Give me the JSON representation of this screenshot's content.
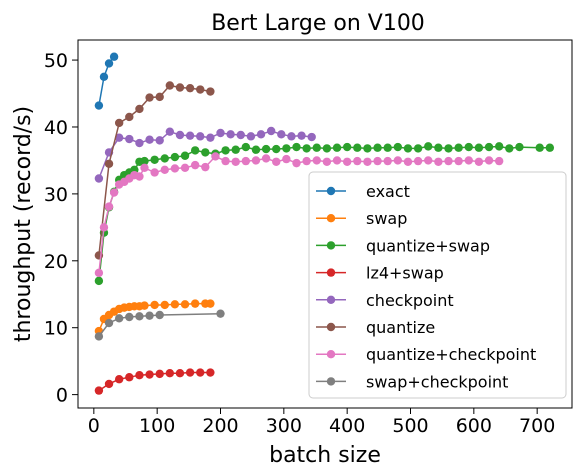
{
  "chart_data": {
    "type": "line",
    "title": "Bert Large on V100",
    "xlabel": "batch size",
    "ylabel": "throughput (record/s)",
    "xlim": [
      -25,
      755
    ],
    "ylim": [
      -2,
      53
    ],
    "xticks": [
      0,
      100,
      200,
      300,
      400,
      500,
      600,
      700
    ],
    "yticks": [
      0,
      10,
      20,
      30,
      40,
      50
    ],
    "grid": false,
    "legend_position": "bottom-right",
    "series": [
      {
        "name": "exact",
        "color": "#1f77b4",
        "x": [
          8,
          16,
          24,
          32
        ],
        "y": [
          43.2,
          47.5,
          49.5,
          50.5
        ]
      },
      {
        "name": "swap",
        "color": "#ff7f0e",
        "x": [
          8,
          16,
          24,
          32,
          40,
          48,
          56,
          64,
          72,
          80,
          96,
          112,
          128,
          144,
          160,
          176,
          184
        ],
        "y": [
          9.5,
          11.3,
          11.9,
          12.4,
          12.8,
          13.0,
          13.1,
          13.2,
          13.2,
          13.3,
          13.4,
          13.4,
          13.5,
          13.5,
          13.6,
          13.6,
          13.6
        ]
      },
      {
        "name": "quantize+swap",
        "color": "#2ca02c",
        "x": [
          8,
          16,
          24,
          32,
          40,
          48,
          56,
          64,
          72,
          80,
          96,
          112,
          128,
          144,
          160,
          176,
          192,
          208,
          224,
          240,
          256,
          272,
          288,
          304,
          320,
          336,
          352,
          368,
          384,
          400,
          416,
          432,
          448,
          464,
          480,
          496,
          512,
          528,
          544,
          560,
          576,
          592,
          608,
          624,
          640,
          656,
          672,
          704,
          720
        ],
        "y": [
          17.0,
          24.2,
          28.0,
          30.3,
          32.1,
          32.8,
          33.2,
          33.6,
          34.8,
          34.9,
          35.1,
          35.3,
          35.5,
          35.7,
          36.5,
          36.2,
          36.0,
          36.5,
          36.6,
          37.0,
          36.6,
          36.7,
          36.7,
          36.8,
          37.0,
          36.8,
          36.9,
          36.8,
          36.9,
          37.0,
          36.9,
          36.8,
          36.9,
          36.9,
          37.0,
          36.8,
          36.8,
          37.1,
          36.9,
          36.8,
          36.9,
          37.0,
          36.9,
          37.0,
          37.1,
          36.8,
          37.0,
          36.9,
          36.9
        ]
      },
      {
        "name": "lz4+swap",
        "color": "#d62728",
        "x": [
          8,
          24,
          40,
          56,
          72,
          88,
          104,
          120,
          136,
          152,
          168,
          184
        ],
        "y": [
          0.6,
          1.6,
          2.3,
          2.6,
          2.9,
          3.0,
          3.1,
          3.2,
          3.2,
          3.3,
          3.3,
          3.3
        ]
      },
      {
        "name": "checkpoint",
        "color": "#9467bd",
        "x": [
          8,
          24,
          40,
          56,
          72,
          88,
          104,
          120,
          136,
          152,
          168,
          184,
          200,
          216,
          232,
          248,
          264,
          280,
          296,
          312,
          328,
          344
        ],
        "y": [
          32.3,
          36.2,
          38.4,
          38.2,
          37.6,
          38.1,
          38.0,
          39.3,
          38.8,
          38.7,
          38.6,
          38.4,
          39.1,
          38.9,
          38.8,
          38.6,
          38.9,
          39.4,
          38.9,
          38.6,
          38.7,
          38.5
        ]
      },
      {
        "name": "quantize",
        "color": "#8c564b",
        "x": [
          8,
          24,
          40,
          56,
          72,
          88,
          104,
          120,
          136,
          152,
          168,
          184
        ],
        "y": [
          20.8,
          34.5,
          40.6,
          41.5,
          42.7,
          44.4,
          44.5,
          46.2,
          45.9,
          45.8,
          45.6,
          45.3
        ]
      },
      {
        "name": "quantize+checkpoint",
        "color": "#e377c2",
        "x": [
          8,
          16,
          24,
          32,
          40,
          48,
          56,
          64,
          72,
          80,
          96,
          112,
          128,
          144,
          160,
          176,
          192,
          208,
          224,
          240,
          256,
          272,
          288,
          304,
          320,
          336,
          352,
          368,
          384,
          400,
          416,
          432,
          448,
          464,
          480,
          496,
          512,
          528,
          544,
          560,
          576,
          592,
          608,
          624,
          640
        ],
        "y": [
          18.2,
          25.0,
          28.1,
          30.2,
          31.4,
          31.8,
          32.3,
          32.8,
          32.6,
          33.9,
          33.2,
          33.6,
          33.8,
          33.9,
          34.3,
          34.0,
          35.6,
          34.9,
          34.8,
          34.9,
          35.0,
          35.3,
          34.8,
          35.2,
          34.6,
          34.9,
          35.0,
          34.8,
          35.0,
          34.8,
          34.9,
          34.8,
          34.9,
          34.9,
          35.0,
          34.8,
          34.9,
          35.0,
          34.8,
          34.9,
          34.9,
          35.0,
          34.8,
          35.0,
          34.9
        ]
      },
      {
        "name": "swap+checkpoint",
        "color": "#7f7f7f",
        "x": [
          8,
          24,
          40,
          56,
          72,
          88,
          104,
          200
        ],
        "y": [
          8.7,
          10.7,
          11.4,
          11.6,
          11.7,
          11.8,
          11.9,
          12.1
        ]
      }
    ]
  }
}
